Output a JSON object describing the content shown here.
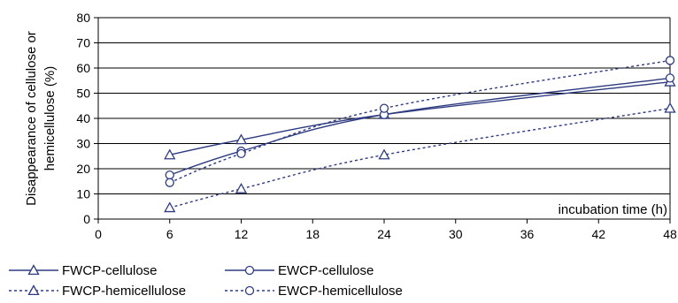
{
  "colors": {
    "series": "#2e3b80",
    "grid": "#000000",
    "axis": "#000000"
  },
  "chart_data": {
    "type": "line",
    "xlabel": "incubation time (h)",
    "ylabel_lines": [
      "Disappearance of cellulose or",
      "hemicellulose (%)"
    ],
    "xlim": [
      0,
      48
    ],
    "ylim": [
      0,
      80
    ],
    "xticks": [
      0,
      6,
      12,
      18,
      24,
      30,
      36,
      42,
      48
    ],
    "yticks": [
      0,
      10,
      20,
      30,
      40,
      50,
      60,
      70,
      80
    ],
    "grid": "horizontal",
    "legend_position": "bottom",
    "series": [
      {
        "name": "FWCP-cellulose",
        "marker": "triangle",
        "dash": "solid",
        "x": [
          6,
          12,
          24,
          48
        ],
        "y": [
          25.5,
          31.5,
          41.5,
          54.5
        ]
      },
      {
        "name": "EWCP-cellulose",
        "marker": "circle",
        "dash": "solid",
        "x": [
          6,
          12,
          24,
          48
        ],
        "y": [
          17.5,
          27,
          41.5,
          56
        ]
      },
      {
        "name": "FWCP-hemicellulose",
        "marker": "triangle",
        "dash": "dotted",
        "x": [
          6,
          12,
          24,
          48
        ],
        "y": [
          4.5,
          12,
          25.5,
          44
        ]
      },
      {
        "name": "EWCP-hemicellulose",
        "marker": "circle",
        "dash": "dotted",
        "x": [
          6,
          12,
          24,
          48
        ],
        "y": [
          14.5,
          26,
          44,
          63
        ]
      }
    ]
  }
}
